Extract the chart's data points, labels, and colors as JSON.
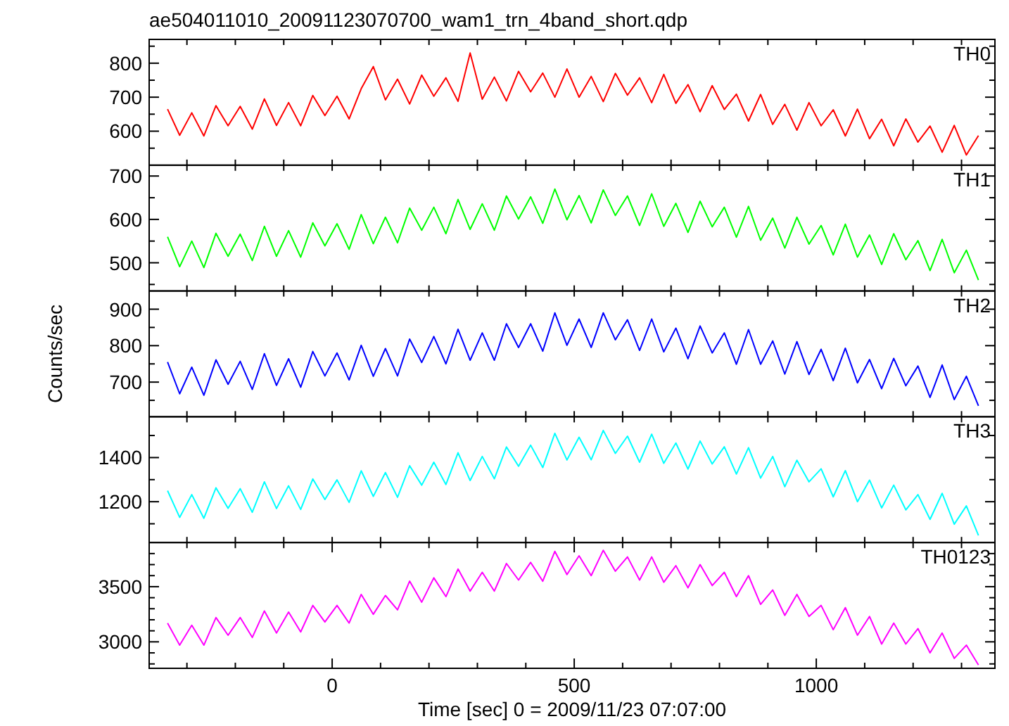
{
  "chart_data": [
    {
      "type": "line",
      "title": "ae504011010_20091123070700_wam1_trn_4band_short.qdp",
      "annotations": [
        "TH0"
      ],
      "color": "#ff0000",
      "tick_labels": "y",
      "xlim": [
        -378,
        1369
      ],
      "xticks": [
        {
          "value": -300,
          "label": null
        },
        {
          "value": -200,
          "label": null
        },
        {
          "value": -100,
          "label": null
        },
        {
          "value": 0,
          "label": null
        },
        {
          "value": 100,
          "label": null
        },
        {
          "value": 200,
          "label": null
        },
        {
          "value": 300,
          "label": null
        },
        {
          "value": 400,
          "label": null
        },
        {
          "value": 500,
          "label": null
        },
        {
          "value": 600,
          "label": null
        },
        {
          "value": 700,
          "label": null
        },
        {
          "value": 800,
          "label": null
        },
        {
          "value": 900,
          "label": null
        },
        {
          "value": 1000,
          "label": null
        },
        {
          "value": 1100,
          "label": null
        },
        {
          "value": 1200,
          "label": null
        },
        {
          "value": 1300,
          "label": null
        }
      ],
      "ylim": [
        500,
        870
      ],
      "yticks": [
        {
          "value": 550,
          "label": null
        },
        600,
        {
          "value": 650,
          "label": null
        },
        700,
        {
          "value": 750,
          "label": null
        },
        800,
        {
          "value": 850,
          "label": null
        }
      ],
      "x": [
        -340,
        -315,
        -290,
        -265,
        -240,
        -215,
        -190,
        -165,
        -140,
        -115,
        -90,
        -65,
        -40,
        -15,
        10,
        35,
        60,
        85,
        110,
        135,
        160,
        185,
        210,
        235,
        260,
        285,
        310,
        335,
        360,
        385,
        410,
        435,
        460,
        485,
        510,
        535,
        560,
        585,
        610,
        635,
        660,
        685,
        710,
        735,
        760,
        785,
        810,
        835,
        860,
        885,
        910,
        935,
        960,
        985,
        1010,
        1035,
        1060,
        1085,
        1110,
        1135,
        1160,
        1185,
        1210,
        1235,
        1260,
        1285,
        1310,
        1335
      ],
      "values": [
        665,
        588,
        654,
        586,
        675,
        616,
        673,
        606,
        695,
        617,
        684,
        616,
        705,
        646,
        703,
        636,
        725,
        790,
        692,
        753,
        680,
        765,
        703,
        757,
        688,
        830,
        694,
        759,
        689,
        776,
        716,
        771,
        700,
        783,
        700,
        761,
        687,
        770,
        706,
        757,
        684,
        767,
        682,
        737,
        657,
        734,
        664,
        709,
        630,
        708,
        620,
        679,
        603,
        684,
        616,
        663,
        586,
        665,
        578,
        635,
        557,
        636,
        568,
        615,
        538,
        617,
        530,
        587
      ]
    },
    {
      "type": "line",
      "annotations": [
        "TH1"
      ],
      "color": "#00ff00",
      "tick_labels": "y",
      "xlim": [
        -378,
        1369
      ],
      "xticks": [
        {
          "value": -300,
          "label": null
        },
        {
          "value": -200,
          "label": null
        },
        {
          "value": -100,
          "label": null
        },
        {
          "value": 0,
          "label": null
        },
        {
          "value": 100,
          "label": null
        },
        {
          "value": 200,
          "label": null
        },
        {
          "value": 300,
          "label": null
        },
        {
          "value": 400,
          "label": null
        },
        {
          "value": 500,
          "label": null
        },
        {
          "value": 600,
          "label": null
        },
        {
          "value": 700,
          "label": null
        },
        {
          "value": 800,
          "label": null
        },
        {
          "value": 900,
          "label": null
        },
        {
          "value": 1000,
          "label": null
        },
        {
          "value": 1100,
          "label": null
        },
        {
          "value": 1200,
          "label": null
        },
        {
          "value": 1300,
          "label": null
        }
      ],
      "ylim": [
        435,
        725
      ],
      "yticks": [
        {
          "value": 450,
          "label": null
        },
        500,
        {
          "value": 550,
          "label": null
        },
        600,
        {
          "value": 650,
          "label": null
        },
        700
      ],
      "x": [
        -340,
        -315,
        -290,
        -265,
        -240,
        -215,
        -190,
        -165,
        -140,
        -115,
        -90,
        -65,
        -40,
        -15,
        10,
        35,
        60,
        85,
        110,
        135,
        160,
        185,
        210,
        235,
        260,
        285,
        310,
        335,
        360,
        385,
        410,
        435,
        460,
        485,
        510,
        535,
        560,
        585,
        610,
        635,
        660,
        685,
        710,
        735,
        760,
        785,
        810,
        835,
        860,
        885,
        910,
        935,
        960,
        985,
        1010,
        1035,
        1060,
        1085,
        1110,
        1135,
        1160,
        1185,
        1210,
        1235,
        1260,
        1285,
        1310,
        1335
      ],
      "values": [
        560,
        491,
        550,
        489,
        568,
        515,
        566,
        505,
        584,
        515,
        574,
        513,
        592,
        539,
        590,
        531,
        611,
        544,
        605,
        546,
        626,
        575,
        628,
        567,
        646,
        577,
        636,
        575,
        654,
        601,
        652,
        591,
        670,
        599,
        655,
        592,
        668,
        609,
        654,
        586,
        659,
        584,
        637,
        570,
        642,
        583,
        628,
        559,
        630,
        552,
        603,
        534,
        605,
        543,
        586,
        518,
        589,
        513,
        564,
        496,
        567,
        507,
        551,
        482,
        554,
        477,
        529,
        460
      ]
    },
    {
      "type": "line",
      "ylabel": "Counts/sec",
      "annotations": [
        "TH2"
      ],
      "color": "#0000ff",
      "tick_labels": "y",
      "xlim": [
        -378,
        1369
      ],
      "xticks": [
        {
          "value": -300,
          "label": null
        },
        {
          "value": -200,
          "label": null
        },
        {
          "value": -100,
          "label": null
        },
        {
          "value": 0,
          "label": null
        },
        {
          "value": 100,
          "label": null
        },
        {
          "value": 200,
          "label": null
        },
        {
          "value": 300,
          "label": null
        },
        {
          "value": 400,
          "label": null
        },
        {
          "value": 500,
          "label": null
        },
        {
          "value": 600,
          "label": null
        },
        {
          "value": 700,
          "label": null
        },
        {
          "value": 800,
          "label": null
        },
        {
          "value": 900,
          "label": null
        },
        {
          "value": 1000,
          "label": null
        },
        {
          "value": 1100,
          "label": null
        },
        {
          "value": 1200,
          "label": null
        },
        {
          "value": 1300,
          "label": null
        }
      ],
      "ylim": [
        605,
        950
      ],
      "yticks": [
        {
          "value": 650,
          "label": null
        },
        700,
        {
          "value": 750,
          "label": null
        },
        800,
        {
          "value": 850,
          "label": null
        },
        900
      ],
      "x": [
        -340,
        -315,
        -290,
        -265,
        -240,
        -215,
        -190,
        -165,
        -140,
        -115,
        -90,
        -65,
        -40,
        -15,
        10,
        35,
        60,
        85,
        110,
        135,
        160,
        185,
        210,
        235,
        260,
        285,
        310,
        335,
        360,
        385,
        410,
        435,
        460,
        485,
        510,
        535,
        560,
        585,
        610,
        635,
        660,
        685,
        710,
        735,
        760,
        785,
        810,
        835,
        860,
        885,
        910,
        935,
        960,
        985,
        1010,
        1035,
        1060,
        1085,
        1110,
        1135,
        1160,
        1185,
        1210,
        1235,
        1260,
        1285,
        1310,
        1335
      ],
      "values": [
        755,
        668,
        741,
        664,
        761,
        694,
        757,
        680,
        778,
        691,
        764,
        686,
        784,
        717,
        780,
        706,
        801,
        716,
        792,
        717,
        818,
        754,
        825,
        750,
        845,
        760,
        835,
        760,
        860,
        795,
        860,
        785,
        890,
        801,
        873,
        795,
        890,
        816,
        871,
        787,
        873,
        783,
        848,
        764,
        854,
        780,
        835,
        749,
        844,
        749,
        813,
        722,
        811,
        721,
        790,
        704,
        793,
        698,
        762,
        682,
        765,
        690,
        744,
        658,
        747,
        652,
        716,
        635
      ]
    },
    {
      "type": "line",
      "annotations": [
        "TH3"
      ],
      "color": "#00ffff",
      "tick_labels": "y",
      "xlim": [
        -378,
        1369
      ],
      "xticks": [
        {
          "value": -300,
          "label": null
        },
        {
          "value": -200,
          "label": null
        },
        {
          "value": -100,
          "label": null
        },
        {
          "value": 0,
          "label": null
        },
        {
          "value": 100,
          "label": null
        },
        {
          "value": 200,
          "label": null
        },
        {
          "value": 300,
          "label": null
        },
        {
          "value": 400,
          "label": null
        },
        {
          "value": 500,
          "label": null
        },
        {
          "value": 600,
          "label": null
        },
        {
          "value": 700,
          "label": null
        },
        {
          "value": 800,
          "label": null
        },
        {
          "value": 900,
          "label": null
        },
        {
          "value": 1000,
          "label": null
        },
        {
          "value": 1100,
          "label": null
        },
        {
          "value": 1200,
          "label": null
        },
        {
          "value": 1300,
          "label": null
        }
      ],
      "ylim": [
        1015,
        1585
      ],
      "yticks": [
        {
          "value": 1100,
          "label": null
        },
        1200,
        {
          "value": 1300,
          "label": null
        },
        1400,
        {
          "value": 1500,
          "label": null
        }
      ],
      "x": [
        -340,
        -315,
        -290,
        -265,
        -240,
        -215,
        -190,
        -165,
        -140,
        -115,
        -90,
        -65,
        -40,
        -15,
        10,
        35,
        60,
        85,
        110,
        135,
        160,
        185,
        210,
        235,
        260,
        285,
        310,
        335,
        360,
        385,
        410,
        435,
        460,
        485,
        510,
        535,
        560,
        585,
        610,
        635,
        660,
        685,
        710,
        735,
        760,
        785,
        810,
        835,
        860,
        885,
        910,
        935,
        960,
        985,
        1010,
        1035,
        1060,
        1085,
        1110,
        1135,
        1160,
        1185,
        1210,
        1235,
        1260,
        1285,
        1310,
        1335
      ],
      "values": [
        1250,
        1129,
        1232,
        1125,
        1263,
        1170,
        1259,
        1152,
        1290,
        1169,
        1272,
        1165,
        1303,
        1210,
        1299,
        1197,
        1340,
        1224,
        1332,
        1220,
        1363,
        1275,
        1379,
        1278,
        1422,
        1296,
        1405,
        1304,
        1448,
        1361,
        1456,
        1355,
        1510,
        1389,
        1492,
        1390,
        1523,
        1419,
        1497,
        1379,
        1506,
        1374,
        1466,
        1348,
        1475,
        1371,
        1449,
        1325,
        1445,
        1307,
        1405,
        1268,
        1388,
        1290,
        1349,
        1222,
        1341,
        1200,
        1298,
        1172,
        1275,
        1163,
        1232,
        1120,
        1238,
        1098,
        1181,
        1047
      ]
    },
    {
      "type": "line",
      "xlabel": "Time [sec] 0 = 2009/11/23 07:07:00",
      "annotations": [
        "TH0123"
      ],
      "color": "#ff00ff",
      "xlim": [
        -378,
        1369
      ],
      "xticks": [
        {
          "value": -300,
          "label": null
        },
        {
          "value": -200,
          "label": null
        },
        {
          "value": -100,
          "label": null
        },
        {
          "value": 0,
          "label": "0"
        },
        {
          "value": 100,
          "label": null
        },
        {
          "value": 200,
          "label": null
        },
        {
          "value": 300,
          "label": null
        },
        {
          "value": 400,
          "label": null
        },
        {
          "value": 500,
          "label": "500"
        },
        {
          "value": 600,
          "label": null
        },
        {
          "value": 700,
          "label": null
        },
        {
          "value": 800,
          "label": null
        },
        {
          "value": 900,
          "label": null
        },
        {
          "value": 1000,
          "label": "1000"
        },
        {
          "value": 1100,
          "label": null
        },
        {
          "value": 1200,
          "label": null
        },
        {
          "value": 1300,
          "label": null
        }
      ],
      "ylim": [
        2760,
        3900
      ],
      "yticks": [
        {
          "value": 2800,
          "label": null
        },
        {
          "value": 2900,
          "label": null
        },
        3000,
        {
          "value": 3100,
          "label": null
        },
        {
          "value": 3200,
          "label": null
        },
        {
          "value": 3300,
          "label": null
        },
        {
          "value": 3400,
          "label": null
        },
        3500,
        {
          "value": 3600,
          "label": null
        },
        {
          "value": 3700,
          "label": null
        },
        {
          "value": 3800,
          "label": null
        }
      ],
      "x": [
        -340,
        -315,
        -290,
        -265,
        -240,
        -215,
        -190,
        -165,
        -140,
        -115,
        -90,
        -65,
        -40,
        -15,
        10,
        35,
        60,
        85,
        110,
        135,
        160,
        185,
        210,
        235,
        260,
        285,
        310,
        335,
        360,
        385,
        410,
        435,
        460,
        485,
        510,
        535,
        560,
        585,
        610,
        635,
        660,
        685,
        710,
        735,
        760,
        785,
        810,
        835,
        860,
        885,
        910,
        935,
        960,
        985,
        1010,
        1035,
        1060,
        1085,
        1110,
        1135,
        1160,
        1185,
        1210,
        1235,
        1260,
        1285,
        1310,
        1335
      ],
      "values": [
        3170,
        2970,
        3150,
        2970,
        3220,
        3060,
        3220,
        3040,
        3280,
        3080,
        3270,
        3090,
        3330,
        3180,
        3330,
        3170,
        3430,
        3250,
        3420,
        3290,
        3550,
        3360,
        3580,
        3410,
        3660,
        3460,
        3630,
        3460,
        3710,
        3560,
        3720,
        3550,
        3820,
        3610,
        3780,
        3600,
        3830,
        3640,
        3770,
        3560,
        3770,
        3540,
        3690,
        3490,
        3700,
        3510,
        3630,
        3410,
        3600,
        3340,
        3470,
        3240,
        3430,
        3230,
        3330,
        3110,
        3310,
        3060,
        3230,
        2980,
        3170,
        2980,
        3120,
        2900,
        3080,
        2850,
        2970,
        2790
      ]
    }
  ]
}
